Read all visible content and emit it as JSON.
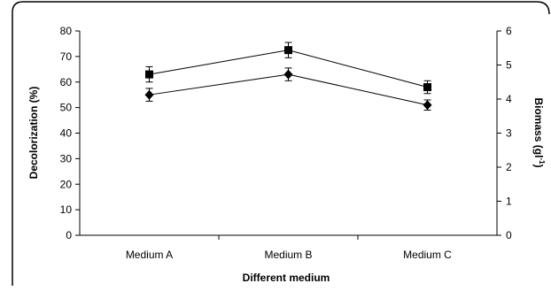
{
  "chart_data": {
    "type": "line",
    "categories": [
      "Medium A",
      "Medium B",
      "Medium C"
    ],
    "xlabel": "Different medium",
    "ylabel_left": "Decolorization (%)",
    "ylabel_right_main": "Biomass (gl",
    "ylabel_right_sup": "-1",
    "ylabel_right_close": ")",
    "ylim_left": [
      0,
      80
    ],
    "yticks_left": [
      "0",
      "10",
      "20",
      "30",
      "40",
      "50",
      "60",
      "70",
      "80"
    ],
    "ylim_right": [
      0,
      6
    ],
    "yticks_right": [
      "0",
      "1",
      "2",
      "3",
      "4",
      "5",
      "6"
    ],
    "grid": false,
    "series": [
      {
        "axis": "left",
        "marker": "square",
        "values": [
          63,
          72.5,
          58
        ],
        "errors": [
          3,
          3,
          2.5
        ]
      },
      {
        "axis": "left",
        "marker": "diamond",
        "values": [
          55,
          63,
          51
        ],
        "errors": [
          2.5,
          2.5,
          2
        ]
      }
    ],
    "colors": {
      "line": "#000000",
      "marker": "#000000",
      "frame": "#000000"
    }
  }
}
